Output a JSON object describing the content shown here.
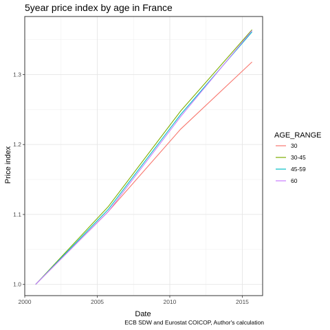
{
  "chart_data": {
    "type": "line",
    "title": "5year price index by age in France",
    "xlabel": "Date",
    "ylabel": "Price index",
    "caption": "ECB SDW and Eurostat COICOP, Author's calculation",
    "xlim": [
      2000,
      2016.4
    ],
    "ylim": [
      0.984,
      1.383
    ],
    "x_ticks": [
      2000,
      2005,
      2010,
      2015
    ],
    "y_ticks": [
      1.0,
      1.1,
      1.2,
      1.3
    ],
    "grid": true,
    "legend": {
      "title": "AGE_RANGE",
      "position": "right"
    },
    "series": [
      {
        "name": "30",
        "color": "#F8766D",
        "x": [
          2000.75,
          2005.75,
          2010.75,
          2015.67
        ],
        "y": [
          1.0,
          1.104,
          1.222,
          1.318
        ]
      },
      {
        "name": "30-45",
        "color": "#7CAE00",
        "x": [
          2000.75,
          2005.75,
          2010.75,
          2015.67
        ],
        "y": [
          1.0,
          1.111,
          1.248,
          1.364
        ]
      },
      {
        "name": "45-59",
        "color": "#00BFC4",
        "x": [
          2000.75,
          2005.75,
          2010.75,
          2015.67
        ],
        "y": [
          1.0,
          1.107,
          1.243,
          1.361
        ]
      },
      {
        "name": "60",
        "color": "#C77CFF",
        "x": [
          2000.75,
          2005.75,
          2010.75,
          2015.67
        ],
        "y": [
          1.0,
          1.104,
          1.24,
          1.363
        ]
      }
    ]
  }
}
